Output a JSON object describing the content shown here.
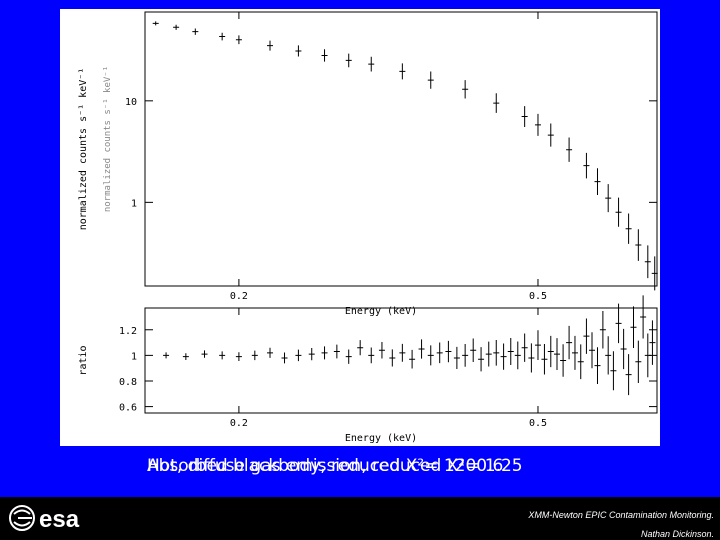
{
  "caption": {
    "line_a": "Hot, diffuse gas emission, reduced X²= 1.25",
    "line_b": "Absorbed blackbody, reduced X²= 1200.6"
  },
  "footer": {
    "logo_text": "esa",
    "note1": "XMM-Newton EPIC Contamination Monitoring.",
    "note2": "Nathan Dickinson."
  },
  "colors": {
    "background": "#0000ff",
    "panel": "#ffffff",
    "footer": "#000000"
  },
  "chart_data": [
    {
      "type": "scatter",
      "xscale": "log",
      "yscale": "log",
      "xlabel": "Energy (keV)",
      "ylabel": "normalized counts s⁻¹ keV⁻¹",
      "ylabel_overlay": "normalized counts s⁻¹ keV⁻¹",
      "xlim": [
        0.15,
        0.72
      ],
      "ylim": [
        0.15,
        75
      ],
      "x_ticks": [
        0.2,
        0.5
      ],
      "y_ticks": [
        1,
        10
      ],
      "x_tick_labels": [
        "0.2",
        "0.5"
      ],
      "y_tick_labels": [
        "1",
        "10"
      ],
      "series": [
        {
          "x": [
            0.155,
            0.165,
            0.175,
            0.19,
            0.2,
            0.22,
            0.24,
            0.26,
            0.28,
            0.3,
            0.33,
            0.36,
            0.4,
            0.44,
            0.48,
            0.5,
            0.52,
            0.55,
            0.58,
            0.6,
            0.62,
            0.64,
            0.66,
            0.68,
            0.7,
            0.715
          ],
          "y": [
            58,
            53,
            48,
            43,
            40,
            35,
            31,
            28,
            25,
            23,
            19.5,
            16,
            13,
            9.5,
            7,
            5.8,
            4.6,
            3.3,
            2.3,
            1.6,
            1.1,
            0.8,
            0.55,
            0.38,
            0.26,
            0.2
          ]
        }
      ]
    },
    {
      "type": "scatter",
      "xscale": "log",
      "xlabel": "Energy (keV)",
      "ylabel": "ratio",
      "xlim": [
        0.15,
        0.72
      ],
      "ylim": [
        0.55,
        1.37
      ],
      "x_ticks": [
        0.2,
        0.5
      ],
      "y_ticks": [
        0.6,
        0.8,
        1,
        1.2
      ],
      "x_tick_labels": [
        "0.2",
        "0.5"
      ],
      "y_tick_labels": [
        "0.6",
        "0.8",
        "1",
        "1.2"
      ],
      "series": [
        {
          "x": [
            0.16,
            0.17,
            0.18,
            0.19,
            0.2,
            0.21,
            0.22,
            0.23,
            0.24,
            0.25,
            0.26,
            0.27,
            0.28,
            0.29,
            0.3,
            0.31,
            0.32,
            0.33,
            0.34,
            0.35,
            0.36,
            0.37,
            0.38,
            0.39,
            0.4,
            0.41,
            0.42,
            0.43,
            0.44,
            0.45,
            0.46,
            0.47,
            0.48,
            0.49,
            0.5,
            0.51,
            0.52,
            0.53,
            0.54,
            0.55,
            0.56,
            0.57,
            0.58,
            0.59,
            0.6,
            0.61,
            0.62,
            0.63,
            0.64,
            0.65,
            0.66,
            0.67,
            0.68,
            0.69,
            0.7,
            0.71
          ],
          "y": [
            1.0,
            0.99,
            1.01,
            1.0,
            0.99,
            1.0,
            1.02,
            0.98,
            1.0,
            1.01,
            1.02,
            1.03,
            0.99,
            1.06,
            1.0,
            1.04,
            0.98,
            1.02,
            0.97,
            1.05,
            1.0,
            1.02,
            1.03,
            0.98,
            1.0,
            1.04,
            0.97,
            1.01,
            1.02,
            0.99,
            1.03,
            1.0,
            1.06,
            0.98,
            1.08,
            0.97,
            1.03,
            1.01,
            0.96,
            1.1,
            1.02,
            0.95,
            1.15,
            1.04,
            0.92,
            1.2,
            1.0,
            0.88,
            1.25,
            1.05,
            0.85,
            1.22,
            0.95,
            1.3,
            1.0,
            1.1
          ]
        }
      ]
    }
  ]
}
